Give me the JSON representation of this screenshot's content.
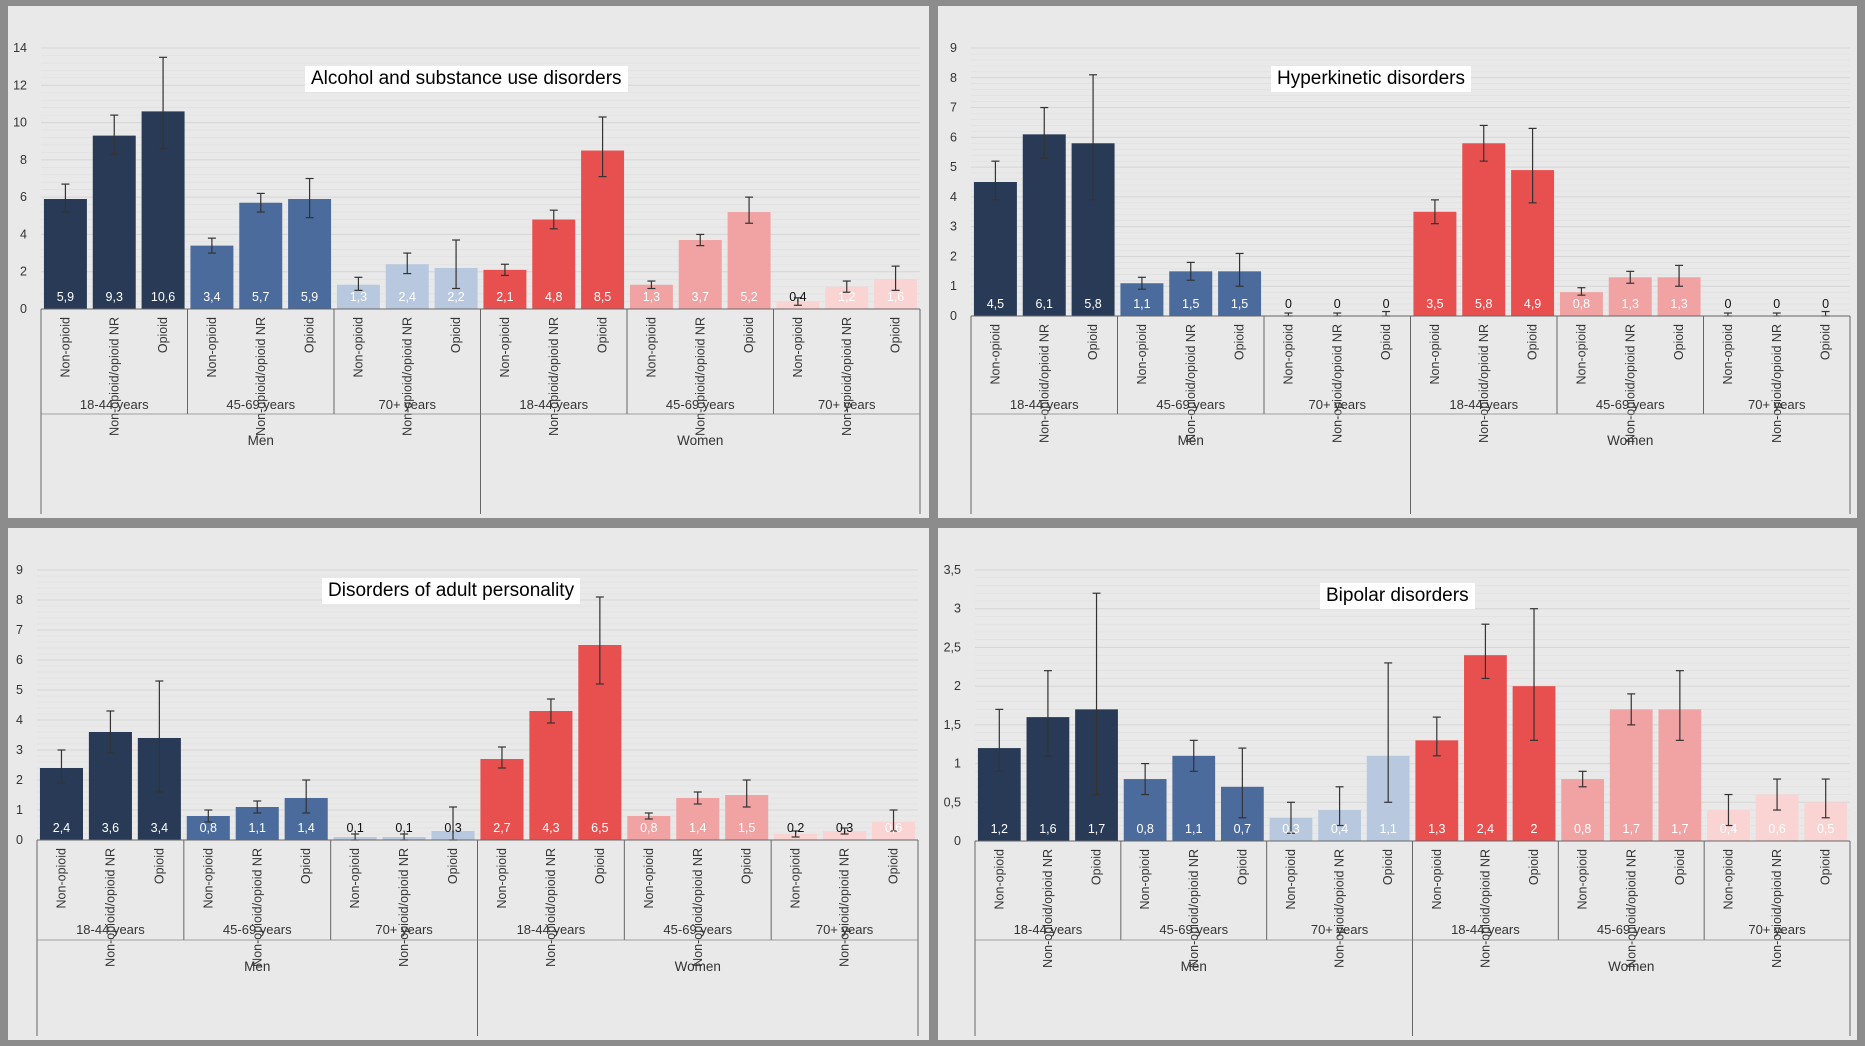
{
  "colors": {
    "men_18_44": "#283a55",
    "men_45_69": "#4b6b9c",
    "men_70": "#b8c9df",
    "women_18_44": "#e85050",
    "women_45_69": "#f1a3a3",
    "women_70": "#fad3d3",
    "panel_bg": "#e9e9e9",
    "border": "#8c8c8c"
  },
  "chart_data": [
    {
      "type": "bar",
      "title": "Alcohol and substance use disorders",
      "ylim": [
        0,
        14
      ],
      "yticks": [
        "0",
        "2",
        "4",
        "6",
        "8",
        "10",
        "12",
        "14"
      ],
      "grid": true,
      "categories": [
        "Non-opioid",
        "Non-opioid/opioid NR",
        "Opioid",
        "Non-opioid",
        "Non-opioid/opioid NR",
        "Opioid",
        "Non-opioid",
        "Non-opioid/opioid NR",
        "Opioid",
        "Non-opioid",
        "Non-opioid/opioid NR",
        "Opioid",
        "Non-opioid",
        "Non-opioid/opioid NR",
        "Opioid",
        "Non-opioid",
        "Non-opioid/opioid NR",
        "Opioid"
      ],
      "age_groups": [
        "18-44 years",
        "45-69 years",
        "70+ years",
        "18-44 years",
        "45-69 years",
        "70+ years"
      ],
      "sex_groups": [
        "Men",
        "Women"
      ],
      "values": [
        5.9,
        9.3,
        10.6,
        3.4,
        5.7,
        5.9,
        1.3,
        2.4,
        2.2,
        2.1,
        4.8,
        8.5,
        1.3,
        3.7,
        5.2,
        0.4,
        1.2,
        1.6
      ],
      "value_labels": [
        "5,9",
        "9,3",
        "10,6",
        "3,4",
        "5,7",
        "5,9",
        "1,3",
        "2,4",
        "2,2",
        "2,1",
        "4,8",
        "8,5",
        "1,3",
        "3,7",
        "5,2",
        "0,4",
        "1,2",
        "1,6"
      ],
      "error_low": [
        5.2,
        8.3,
        8.6,
        3.0,
        5.2,
        4.9,
        1.0,
        1.9,
        1.1,
        1.8,
        4.3,
        7.1,
        1.1,
        3.4,
        4.6,
        0.2,
        0.9,
        1.0
      ],
      "error_high": [
        6.7,
        10.4,
        13.5,
        3.8,
        6.2,
        7.0,
        1.7,
        3.0,
        3.7,
        2.4,
        5.3,
        10.3,
        1.5,
        4.0,
        6.0,
        0.6,
        1.5,
        2.3
      ]
    },
    {
      "type": "bar",
      "title": "Hyperkinetic disorders",
      "ylim": [
        0,
        9
      ],
      "yticks": [
        "0",
        "1",
        "2",
        "3",
        "4",
        "5",
        "6",
        "7",
        "8",
        "9"
      ],
      "grid": true,
      "categories": [
        "Non-opioid",
        "Non-opioid/opioid NR",
        "Opioid",
        "Non-opioid",
        "Non-opioid/opioid NR",
        "Opioid",
        "Non-opioid",
        "Non-opioid/opioid NR",
        "Opioid",
        "Non-opioid",
        "Non-opioid/opioid NR",
        "Opioid",
        "Non-opioid",
        "Non-opioid/opioid NR",
        "Opioid",
        "Non-opioid",
        "Non-opioid/opioid NR",
        "Opioid"
      ],
      "age_groups": [
        "18-44 years",
        "45-69 years",
        "70+ years",
        "18-44 years",
        "45-69 years",
        "70+ years"
      ],
      "sex_groups": [
        "Men",
        "Women"
      ],
      "values": [
        4.5,
        6.1,
        5.8,
        1.1,
        1.5,
        1.5,
        0,
        0,
        0,
        3.5,
        5.8,
        4.9,
        0.8,
        1.3,
        1.3,
        0,
        0,
        0
      ],
      "value_labels": [
        "4,5",
        "6,1",
        "5,8",
        "1,1",
        "1,5",
        "1,5",
        "0",
        "0",
        "0",
        "3,5",
        "5,8",
        "4,9",
        "0,8",
        "1,3",
        "1,3",
        "0",
        "0",
        "0"
      ],
      "error_low": [
        3.9,
        5.3,
        3.9,
        0.9,
        1.2,
        1.0,
        0,
        0,
        0,
        3.1,
        5.2,
        3.8,
        0.7,
        1.1,
        1.0,
        0,
        0,
        0
      ],
      "error_high": [
        5.2,
        7.0,
        8.1,
        1.3,
        1.8,
        2.1,
        0.1,
        0.1,
        0.15,
        3.9,
        6.4,
        6.3,
        0.95,
        1.5,
        1.7,
        0.1,
        0.1,
        0.15
      ]
    },
    {
      "type": "bar",
      "title": "Disorders of adult personality",
      "ylim": [
        0,
        9
      ],
      "yticks": [
        "0",
        "1",
        "2",
        "3",
        "4",
        "5",
        "6",
        "7",
        "8",
        "9"
      ],
      "grid": true,
      "categories": [
        "Non-opioid",
        "Non-opioid/opioid NR",
        "Opioid",
        "Non-opioid",
        "Non-opioid/opioid NR",
        "Opioid",
        "Non-opioid",
        "Non-opioid/opioid NR",
        "Opioid",
        "Non-opioid",
        "Non-opioid/opioid NR",
        "Opioid",
        "Non-opioid",
        "Non-opioid/opioid NR",
        "Opioid",
        "Non-opioid",
        "Non-opioid/opioid NR",
        "Opioid"
      ],
      "age_groups": [
        "18-44 years",
        "45-69 years",
        "70+ years",
        "18-44 years",
        "45-69 years",
        "70+ years"
      ],
      "sex_groups": [
        "Men",
        "Women"
      ],
      "values": [
        2.4,
        3.6,
        3.4,
        0.8,
        1.1,
        1.4,
        0.1,
        0.1,
        0.3,
        2.7,
        4.3,
        6.5,
        0.8,
        1.4,
        1.5,
        0.2,
        0.3,
        0.6
      ],
      "value_labels": [
        "2,4",
        "3,6",
        "3,4",
        "0,8",
        "1,1",
        "1,4",
        "0,1",
        "0,1",
        "0,3",
        "2,7",
        "4,3",
        "6,5",
        "0,8",
        "1,4",
        "1,5",
        "0,2",
        "0,3",
        "0,6"
      ],
      "error_low": [
        1.9,
        2.9,
        1.6,
        0.6,
        0.9,
        0.9,
        0.0,
        0.0,
        0.0,
        2.4,
        3.9,
        5.2,
        0.7,
        1.2,
        1.1,
        0.1,
        0.2,
        0.3
      ],
      "error_high": [
        3.0,
        4.3,
        5.3,
        1.0,
        1.3,
        2.0,
        0.2,
        0.2,
        1.1,
        3.1,
        4.7,
        8.1,
        0.9,
        1.6,
        2.0,
        0.3,
        0.4,
        1.0
      ]
    },
    {
      "type": "bar",
      "title": "Bipolar disorders",
      "ylim": [
        0,
        3.5
      ],
      "yticks": [
        "0",
        "0,5",
        "1",
        "1,5",
        "2",
        "2,5",
        "3",
        "3,5"
      ],
      "grid": true,
      "categories": [
        "Non-opioid",
        "Non-opioid/opioid NR",
        "Opioid",
        "Non-opioid",
        "Non-opioid/opioid NR",
        "Opioid",
        "Non-opioid",
        "Non-opioid/opioid NR",
        "Opioid",
        "Non-opioid",
        "Non-opioid/opioid NR",
        "Opioid",
        "Non-opioid",
        "Non-opioid/opioid NR",
        "Opioid",
        "Non-opioid",
        "Non-opioid/opioid NR",
        "Opioid"
      ],
      "age_groups": [
        "18-44 years",
        "45-69 years",
        "70+ years",
        "18-44 years",
        "45-69 years",
        "70+ years"
      ],
      "sex_groups": [
        "Men",
        "Women"
      ],
      "values": [
        1.2,
        1.6,
        1.7,
        0.8,
        1.1,
        0.7,
        0.3,
        0.4,
        1.1,
        1.3,
        2.4,
        2.0,
        0.8,
        1.7,
        1.7,
        0.4,
        0.6,
        0.5
      ],
      "value_labels": [
        "1,2",
        "1,6",
        "1,7",
        "0,8",
        "1,1",
        "0,7",
        "0,3",
        "0,4",
        "1,1",
        "1,3",
        "2,4",
        "2",
        "0,8",
        "1,7",
        "1,7",
        "0,4",
        "0,6",
        "0,5"
      ],
      "error_low": [
        0.9,
        1.1,
        0.6,
        0.6,
        0.9,
        0.3,
        0.1,
        0.2,
        0.5,
        1.1,
        2.1,
        1.3,
        0.7,
        1.5,
        1.3,
        0.2,
        0.4,
        0.3
      ],
      "error_high": [
        1.7,
        2.2,
        3.2,
        1.0,
        1.3,
        1.2,
        0.5,
        0.7,
        2.3,
        1.6,
        2.8,
        3.0,
        0.9,
        1.9,
        2.2,
        0.6,
        0.8,
        0.8
      ]
    }
  ]
}
